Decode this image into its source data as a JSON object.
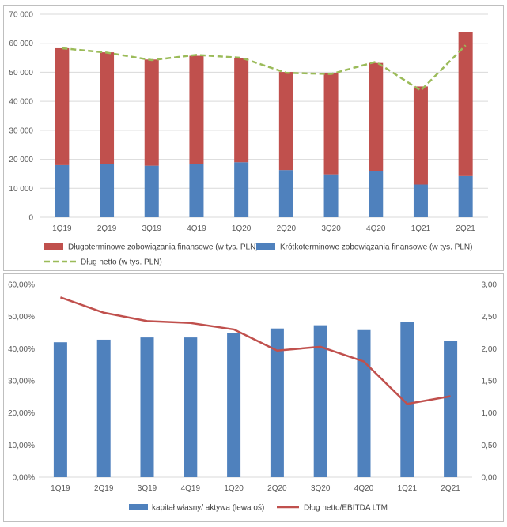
{
  "colors": {
    "long_term": "#c0504d",
    "short_term": "#4f81bd",
    "net_debt_line": "#9bbb59",
    "equity_bar": "#4f81bd",
    "ratio_line": "#c0504d",
    "axis_text": "#595959",
    "grid": "#d9d9d9",
    "border": "#bfbfbf"
  },
  "chart_data": [
    {
      "type": "bar",
      "stacked": true,
      "categories": [
        "1Q19",
        "2Q19",
        "3Q19",
        "4Q19",
        "1Q20",
        "2Q20",
        "3Q20",
        "4Q20",
        "1Q21",
        "2Q21"
      ],
      "series": [
        {
          "name": "Krótkoterminowe zobowiązania finansowe (w tys. PLN)",
          "type": "bar",
          "values": [
            18000,
            18500,
            17800,
            18500,
            19000,
            16300,
            14800,
            15800,
            11300,
            14200
          ]
        },
        {
          "name": "Długoterminowe zobowiązania finansowe (w tys. PLN)",
          "type": "bar",
          "values": [
            40300,
            38400,
            36600,
            37200,
            35800,
            33800,
            34800,
            37400,
            33800,
            49800
          ]
        },
        {
          "name": "Dług netto (w tys. PLN)",
          "type": "line",
          "style": "dashed",
          "values": [
            58300,
            56800,
            54200,
            56000,
            55000,
            49800,
            49400,
            53600,
            43700,
            59300
          ]
        }
      ],
      "ylim": [
        0,
        70000
      ],
      "yticks": [
        "0",
        "10 000",
        "20 000",
        "30 000",
        "40 000",
        "50 000",
        "60 000",
        "70 000"
      ],
      "grid": true,
      "legend_position": "bottom",
      "legend": [
        {
          "label": "Długoterminowe zobowiązania finansowe (w tys. PLN)",
          "kind": "bar",
          "color": "#c0504d"
        },
        {
          "label": "Krótkoterminowe zobowiązania finansowe (w tys. PLN)",
          "kind": "bar",
          "color": "#4f81bd"
        },
        {
          "label": "Dług netto (w tys. PLN)",
          "kind": "dash",
          "color": "#9bbb59"
        }
      ]
    },
    {
      "type": "bar",
      "dual_axis": true,
      "categories": [
        "1Q19",
        "2Q19",
        "3Q19",
        "4Q19",
        "1Q20",
        "2Q20",
        "3Q20",
        "4Q20",
        "1Q21",
        "2Q21"
      ],
      "series": [
        {
          "name": "kapitał własny/ aktywa (lewa oś)",
          "type": "bar",
          "axis": "left",
          "values": [
            42.0,
            42.8,
            43.5,
            43.5,
            44.8,
            46.3,
            47.3,
            45.8,
            48.3,
            42.3
          ]
        },
        {
          "name": "Dług netto/EBITDA LTM",
          "type": "line",
          "axis": "right",
          "values": [
            2.8,
            2.56,
            2.43,
            2.4,
            2.3,
            1.97,
            2.03,
            1.8,
            1.14,
            1.26
          ]
        }
      ],
      "ylim_left": [
        0,
        60
      ],
      "ylim_right": [
        0,
        3
      ],
      "yticks_left": [
        "0,00%",
        "10,00%",
        "20,00%",
        "30,00%",
        "40,00%",
        "50,00%",
        "60,00%"
      ],
      "yticks_right": [
        "0,00",
        "0,50",
        "1,00",
        "1,50",
        "2,00",
        "2,50",
        "3,00"
      ],
      "grid": false,
      "legend_position": "bottom",
      "legend": [
        {
          "label": "kapitał własny/ aktywa (lewa oś)",
          "kind": "bar",
          "color": "#4f81bd"
        },
        {
          "label": "Dług netto/EBITDA LTM",
          "kind": "line",
          "color": "#c0504d"
        }
      ]
    }
  ]
}
